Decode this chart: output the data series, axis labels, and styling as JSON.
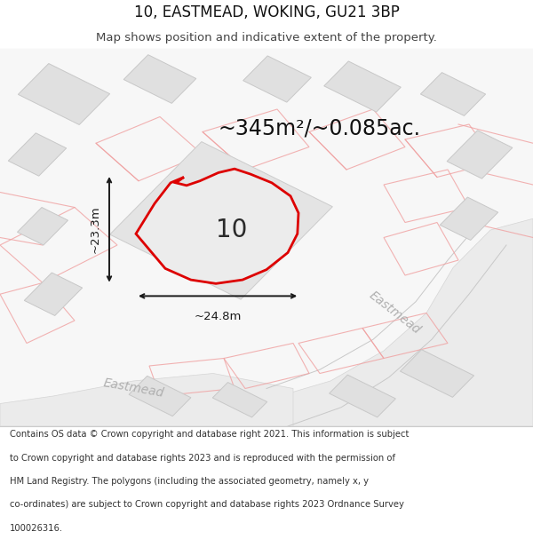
{
  "title": "10, EASTMEAD, WOKING, GU21 3BP",
  "subtitle": "Map shows position and indicative extent of the property.",
  "area_text": "~345m²/~0.085ac.",
  "label_number": "10",
  "dim_width": "~24.8m",
  "dim_height": "~23.3m",
  "street_label": "Eastmead",
  "footer_lines": [
    "Contains OS data © Crown copyright and database right 2021. This information is subject",
    "to Crown copyright and database rights 2023 and is reproduced with the permission of",
    "HM Land Registry. The polygons (including the associated geometry, namely x, y",
    "co-ordinates) are subject to Crown copyright and database rights 2023 Ordnance Survey",
    "100026316."
  ],
  "map_bg": "#f7f7f7",
  "building_fill": "#e0e0e0",
  "building_edge": "#c8c8c8",
  "road_fill": "#ebebeb",
  "road_text": "#b0b0b0",
  "plot_red": "#dd0000",
  "plot_fill": "#ececec",
  "pink_line": "#f0a0a0",
  "dim_color": "#1a1a1a",
  "title_color": "#111111",
  "footer_color": "#333333",
  "title_fontsize": 12,
  "subtitle_fontsize": 9.5,
  "area_fontsize": 17,
  "number_fontsize": 20,
  "dim_fontsize": 9.5,
  "street_fontsize": 10,
  "footer_fontsize": 7.2
}
